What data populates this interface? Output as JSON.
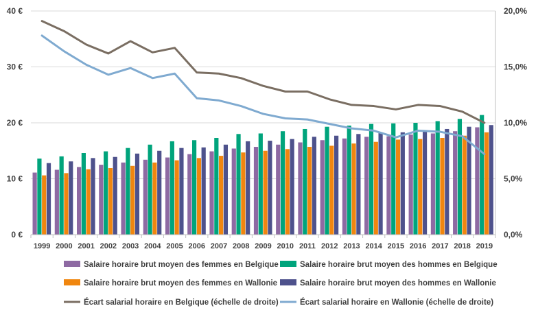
{
  "chart_data": {
    "type": "bar",
    "categories": [
      "1999",
      "2000",
      "2001",
      "2002",
      "2003",
      "2004",
      "2005",
      "2006",
      "2007",
      "2008",
      "2009",
      "2010",
      "2011",
      "2012",
      "2013",
      "2014",
      "2015",
      "2016",
      "2017",
      "2018",
      "2019"
    ],
    "y_left": {
      "ylim": [
        0,
        40
      ],
      "ticks": [
        0,
        10,
        20,
        30,
        40
      ],
      "tick_labels": [
        "0 €",
        "10 €",
        "20 €",
        "30 €",
        "40 €"
      ]
    },
    "y_right": {
      "ylim": [
        0,
        0.2
      ],
      "ticks": [
        0,
        0.05,
        0.1,
        0.15,
        0.2
      ],
      "tick_labels": [
        "0,0%",
        "5,0%",
        "10,0%",
        "15,0%",
        "20,0%"
      ]
    },
    "grid": "horizontal",
    "legend_position": "bottom",
    "bar_series": [
      {
        "name": "Salaire horaire brut moyen des femmes en Belgique",
        "color": "#8E6AA3",
        "values": [
          11.1,
          11.6,
          12.1,
          12.5,
          12.9,
          13.4,
          13.8,
          14.4,
          14.9,
          15.4,
          15.7,
          16.1,
          16.5,
          16.9,
          17.2,
          17.5,
          17.6,
          17.9,
          18.1,
          18.5,
          19.2
        ]
      },
      {
        "name": "Salaire horaire brut moyen des hommes en Belgique",
        "color": "#00A47C",
        "values": [
          13.6,
          14.0,
          14.6,
          14.9,
          15.5,
          16.1,
          16.7,
          16.9,
          17.3,
          18.0,
          18.1,
          18.5,
          18.9,
          19.3,
          19.5,
          19.8,
          19.9,
          20.0,
          20.3,
          20.7,
          21.4
        ]
      },
      {
        "name": "Salaire horaire brut moyen des femmes en Wallonie",
        "color": "#F0860F",
        "values": [
          10.6,
          11.0,
          11.7,
          11.9,
          12.3,
          12.9,
          13.3,
          13.7,
          14.1,
          14.7,
          15.0,
          15.3,
          15.7,
          15.9,
          16.3,
          16.6,
          17.0,
          17.1,
          17.3,
          17.7,
          18.3
        ]
      },
      {
        "name": "Salaire horaire brut moyen des hommes en Wallonie",
        "color": "#4E528C",
        "values": [
          12.8,
          13.1,
          13.7,
          13.9,
          14.5,
          15.0,
          15.5,
          15.6,
          16.1,
          16.7,
          16.8,
          17.1,
          17.5,
          17.7,
          18.0,
          18.2,
          18.3,
          18.5,
          18.9,
          19.3,
          19.6
        ]
      }
    ],
    "line_series": [
      {
        "name": "Écart salarial horaire en Belgique (échelle de droite)",
        "color": "#7A6E62",
        "values": [
          0.191,
          0.182,
          0.17,
          0.162,
          0.173,
          0.163,
          0.167,
          0.145,
          0.144,
          0.14,
          0.133,
          0.128,
          0.128,
          0.121,
          0.116,
          0.115,
          0.112,
          0.116,
          0.115,
          0.11,
          0.1
        ]
      },
      {
        "name": "Écart salarial horaire en Wallonie (échelle de droite)",
        "color": "#7FAAD0",
        "values": [
          0.178,
          0.164,
          0.152,
          0.143,
          0.149,
          0.14,
          0.144,
          0.122,
          0.12,
          0.115,
          0.108,
          0.104,
          0.103,
          0.099,
          0.095,
          0.093,
          0.087,
          0.093,
          0.092,
          0.088,
          0.072
        ]
      }
    ]
  }
}
